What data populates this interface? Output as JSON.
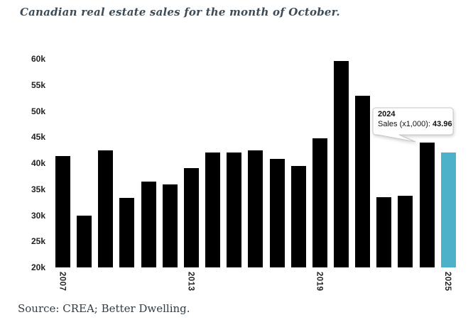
{
  "title": "Canadian real estate sales for the month of October.",
  "source": "Source: CREA; Better Dwelling.",
  "tooltip": {
    "year": "2024",
    "label": "Sales (x1,000):",
    "value": "43.96"
  },
  "colors": {
    "bar": "#000000",
    "highlight_bar": "#4db1c9",
    "title_text": "#3d4b57",
    "axis_text": "#222222",
    "tooltip_border": "#c8c8c8",
    "tooltip_bg": "#ffffff"
  },
  "chart_data": {
    "type": "bar",
    "title": "Canadian real estate sales for the month of October.",
    "categories": [
      2007,
      2008,
      2009,
      2010,
      2011,
      2012,
      2013,
      2014,
      2015,
      2016,
      2017,
      2018,
      2019,
      2020,
      2021,
      2022,
      2023,
      2024,
      2025
    ],
    "series": [
      {
        "name": "Sales (x1,000)",
        "values": [
          41.3,
          29.9,
          42.5,
          33.3,
          36.4,
          35.9,
          39.0,
          42.0,
          42.1,
          42.5,
          40.8,
          39.5,
          44.8,
          59.6,
          52.9,
          33.5,
          33.8,
          43.96,
          42.0
        ]
      }
    ],
    "xlabel": "",
    "ylabel": "",
    "ylim": [
      20,
      62
    ],
    "ytick_values": [
      20,
      25,
      30,
      35,
      40,
      45,
      50,
      55,
      60
    ],
    "ytick_labels": [
      "20k",
      "25k",
      "30k",
      "35k",
      "40k",
      "45k",
      "50k",
      "55k",
      "60k"
    ],
    "xticks": [
      {
        "label": "2007",
        "i": 0
      },
      {
        "label": "2013",
        "i": 6
      },
      {
        "label": "2019",
        "i": 12
      },
      {
        "label": "2025",
        "i": 18
      }
    ],
    "grid": false,
    "legend": false,
    "highlight": {
      "category": 2025,
      "color": "#4db1c9"
    },
    "annotation": {
      "category": 2024,
      "text": "Sales (x1,000): 43.96"
    }
  }
}
